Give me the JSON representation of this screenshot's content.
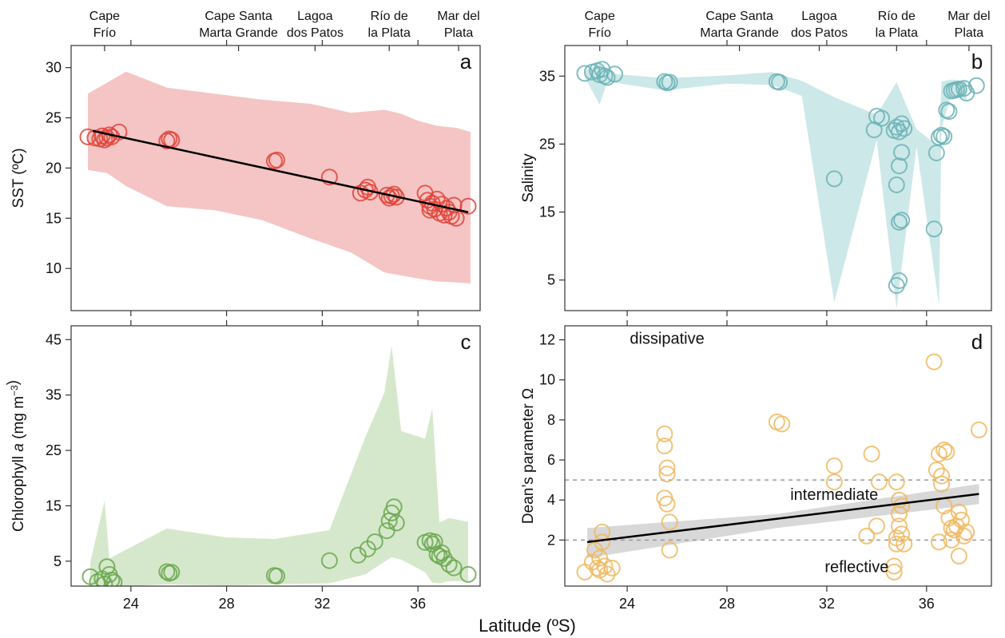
{
  "figure": {
    "xlabel": "Latitude (ºS)",
    "location_labels": [
      {
        "lat": 22.9,
        "lines": [
          "Cape",
          "Frío"
        ]
      },
      {
        "lat": 28.5,
        "lines": [
          "Cape Santa",
          "Marta Grande"
        ]
      },
      {
        "lat": 31.7,
        "lines": [
          "Lagoa",
          "dos Patos"
        ]
      },
      {
        "lat": 34.8,
        "lines": [
          "Río de",
          "la Plata"
        ]
      },
      {
        "lat": 37.7,
        "lines": [
          "Mar del",
          "Plata"
        ]
      }
    ]
  },
  "colors": {
    "sst": "#e0443a",
    "sst_band": "#f4c5c4",
    "salinity": "#6bb3b6",
    "salinity_band": "#cde8e8",
    "chlorophyll": "#6aa84f",
    "chlorophyll_band": "#d6e8cc",
    "dean": "#f0b860",
    "dean_band": "#d8d8d8",
    "trend": "#000000",
    "threshold": "#999999"
  },
  "chart_data": [
    {
      "type": "scatter",
      "panel": "a",
      "ylabel": "SST (ºC)",
      "xlim": [
        21.5,
        38.6
      ],
      "ylim": [
        5.8,
        32.2
      ],
      "yticks": [
        10,
        15,
        20,
        25,
        30
      ],
      "xticks": [
        24,
        28,
        32,
        36
      ],
      "points": [
        [
          22.2,
          23.1
        ],
        [
          22.5,
          23.0
        ],
        [
          22.7,
          22.9
        ],
        [
          22.8,
          23.2
        ],
        [
          22.9,
          22.8
        ],
        [
          23.0,
          23.0
        ],
        [
          23.1,
          23.3
        ],
        [
          23.2,
          23.1
        ],
        [
          23.5,
          23.6
        ],
        [
          25.5,
          22.7
        ],
        [
          25.6,
          22.9
        ],
        [
          25.7,
          22.8
        ],
        [
          30.0,
          20.7
        ],
        [
          30.1,
          20.8
        ],
        [
          32.3,
          19.1
        ],
        [
          33.6,
          17.5
        ],
        [
          33.8,
          17.8
        ],
        [
          33.9,
          18.1
        ],
        [
          34.0,
          17.6
        ],
        [
          34.7,
          17.3
        ],
        [
          34.8,
          17.0
        ],
        [
          34.9,
          17.2
        ],
        [
          35.0,
          17.4
        ],
        [
          35.1,
          17.1
        ],
        [
          36.3,
          17.5
        ],
        [
          36.4,
          16.8
        ],
        [
          36.5,
          16.2
        ],
        [
          36.5,
          15.8
        ],
        [
          36.6,
          16.5
        ],
        [
          36.7,
          15.9
        ],
        [
          36.8,
          16.9
        ],
        [
          36.9,
          15.5
        ],
        [
          37.0,
          16.4
        ],
        [
          37.1,
          15.3
        ],
        [
          37.2,
          16.0
        ],
        [
          37.3,
          15.6
        ],
        [
          37.4,
          15.2
        ],
        [
          37.5,
          16.3
        ],
        [
          37.6,
          15.0
        ],
        [
          38.1,
          16.2
        ]
      ],
      "trend": [
        [
          22.4,
          23.7
        ],
        [
          38.1,
          15.6
        ]
      ],
      "band": [
        [
          22.2,
          19.8,
          27.4
        ],
        [
          23.0,
          19.5,
          28.5
        ],
        [
          23.8,
          18.2,
          29.6
        ],
        [
          25.5,
          16.2,
          28.0
        ],
        [
          27.5,
          15.8,
          27.4
        ],
        [
          29.5,
          14.8,
          26.8
        ],
        [
          31.5,
          13.0,
          26.4
        ],
        [
          33.2,
          11.6,
          25.5
        ],
        [
          34.6,
          9.6,
          25.8
        ],
        [
          35.3,
          9.3,
          25.4
        ],
        [
          36.0,
          9.0,
          24.7
        ],
        [
          36.8,
          8.7,
          24.2
        ],
        [
          37.6,
          8.6,
          24.0
        ],
        [
          38.2,
          8.5,
          23.6
        ]
      ]
    },
    {
      "type": "scatter",
      "panel": "b",
      "ylabel": "Salinity",
      "xlim": [
        21.5,
        38.6
      ],
      "ylim": [
        0.5,
        39.5
      ],
      "yticks": [
        5,
        15,
        25,
        35
      ],
      "xticks": [
        24,
        28,
        32,
        36
      ],
      "points": [
        [
          22.3,
          35.4
        ],
        [
          22.6,
          35.6
        ],
        [
          22.8,
          35.8
        ],
        [
          22.9,
          35.2
        ],
        [
          23.0,
          36.0
        ],
        [
          23.1,
          35.0
        ],
        [
          23.2,
          34.8
        ],
        [
          23.5,
          35.3
        ],
        [
          25.5,
          34.2
        ],
        [
          25.6,
          34.0
        ],
        [
          25.7,
          34.1
        ],
        [
          30.0,
          34.2
        ],
        [
          30.1,
          34.1
        ],
        [
          32.3,
          19.9
        ],
        [
          33.9,
          27.1
        ],
        [
          34.0,
          29.1
        ],
        [
          34.2,
          28.8
        ],
        [
          34.7,
          27.0
        ],
        [
          34.8,
          27.5
        ],
        [
          34.9,
          26.8
        ],
        [
          35.0,
          28.0
        ],
        [
          35.1,
          27.3
        ],
        [
          34.8,
          19.0
        ],
        [
          34.9,
          21.8
        ],
        [
          35.0,
          23.8
        ],
        [
          34.9,
          13.5
        ],
        [
          35.0,
          13.8
        ],
        [
          34.8,
          4.2
        ],
        [
          34.9,
          4.9
        ],
        [
          36.3,
          12.5
        ],
        [
          36.4,
          23.7
        ],
        [
          36.5,
          26.0
        ],
        [
          36.6,
          26.3
        ],
        [
          36.7,
          26.1
        ],
        [
          36.8,
          30.0
        ],
        [
          36.9,
          29.8
        ],
        [
          37.0,
          32.8
        ],
        [
          37.1,
          32.9
        ],
        [
          37.2,
          33.0
        ],
        [
          37.3,
          33.1
        ],
        [
          37.5,
          33.2
        ],
        [
          37.6,
          32.5
        ],
        [
          38.0,
          33.6
        ]
      ],
      "band": [
        [
          22.3,
          34.8,
          35.8
        ],
        [
          22.9,
          30.8,
          36.8
        ],
        [
          23.2,
          34.2,
          35.4
        ],
        [
          25.5,
          32.9,
          34.7
        ],
        [
          28.0,
          33.9,
          35.1
        ],
        [
          29.8,
          33.7,
          35.6
        ],
        [
          31.0,
          32.1,
          34.3
        ],
        [
          32.3,
          1.7,
          31.9
        ],
        [
          34.0,
          25.6,
          29.3
        ],
        [
          34.8,
          0.8,
          34.1
        ],
        [
          35.6,
          24.6,
          27.2
        ],
        [
          36.5,
          1.3,
          24.6
        ],
        [
          36.6,
          27.3,
          34.2
        ],
        [
          37.0,
          32.4,
          34.5
        ],
        [
          37.6,
          31.5,
          34.2
        ]
      ]
    },
    {
      "type": "scatter",
      "panel": "c",
      "ylabel": "Chlorophyll a (mg m⁻³)",
      "xlim": [
        21.5,
        38.6
      ],
      "ylim": [
        0.5,
        47.5
      ],
      "yticks": [
        5,
        15,
        25,
        35,
        45
      ],
      "xticks": [
        24,
        28,
        32,
        36
      ],
      "points": [
        [
          22.3,
          2.2
        ],
        [
          22.6,
          1.3
        ],
        [
          22.8,
          1.8
        ],
        [
          22.9,
          0.9
        ],
        [
          23.0,
          4.0
        ],
        [
          23.1,
          2.6
        ],
        [
          23.2,
          1.6
        ],
        [
          23.3,
          1.2
        ],
        [
          25.5,
          3.1
        ],
        [
          25.6,
          2.8
        ],
        [
          25.7,
          3.0
        ],
        [
          30.0,
          2.4
        ],
        [
          30.1,
          2.3
        ],
        [
          32.3,
          5.1
        ],
        [
          33.5,
          6.1
        ],
        [
          33.9,
          7.2
        ],
        [
          34.2,
          8.5
        ],
        [
          34.7,
          10.5
        ],
        [
          34.8,
          12.3
        ],
        [
          34.9,
          13.7
        ],
        [
          35.0,
          14.8
        ],
        [
          35.1,
          11.9
        ],
        [
          36.3,
          8.4
        ],
        [
          36.5,
          8.7
        ],
        [
          36.6,
          8.1
        ],
        [
          36.7,
          8.5
        ],
        [
          36.8,
          6.2
        ],
        [
          36.9,
          5.9
        ],
        [
          37.0,
          6.5
        ],
        [
          37.1,
          5.5
        ],
        [
          37.3,
          4.4
        ],
        [
          37.5,
          3.8
        ],
        [
          38.1,
          2.6
        ]
      ],
      "band": [
        [
          22.3,
          0.3,
          4.8
        ],
        [
          22.9,
          0.3,
          15.9
        ],
        [
          23.1,
          0.3,
          5.5
        ],
        [
          25.5,
          0.8,
          10.9
        ],
        [
          28.0,
          0.6,
          9.3
        ],
        [
          30.0,
          0.8,
          9.0
        ],
        [
          32.3,
          1.0,
          10.6
        ],
        [
          33.8,
          2.6,
          27.4
        ],
        [
          34.6,
          4.9,
          35.4
        ],
        [
          34.9,
          5.7,
          43.9
        ],
        [
          35.3,
          5.3,
          28.5
        ],
        [
          36.3,
          3.0,
          27.1
        ],
        [
          36.6,
          1.1,
          32.6
        ],
        [
          36.9,
          1.0,
          12.0
        ],
        [
          37.3,
          1.4,
          12.8
        ],
        [
          38.1,
          1.4,
          12.1
        ]
      ]
    },
    {
      "type": "scatter",
      "panel": "d",
      "ylabel": "Dean’s parameter Ω",
      "xlim": [
        21.5,
        38.6
      ],
      "ylim": [
        -0.3,
        12.7
      ],
      "yticks": [
        2,
        4,
        6,
        8,
        10,
        12
      ],
      "xticks": [
        24,
        28,
        32,
        36
      ],
      "thresholds": [
        2,
        5
      ],
      "regions": [
        "dissipative",
        "intermediate",
        "reflective"
      ],
      "points": [
        [
          22.3,
          0.4
        ],
        [
          22.6,
          0.9
        ],
        [
          22.7,
          1.5
        ],
        [
          22.8,
          0.6
        ],
        [
          22.9,
          0.5
        ],
        [
          22.9,
          1.1
        ],
        [
          23.0,
          1.9
        ],
        [
          23.0,
          2.4
        ],
        [
          23.1,
          0.7
        ],
        [
          23.2,
          0.3
        ],
        [
          23.4,
          0.6
        ],
        [
          25.5,
          7.3
        ],
        [
          25.5,
          6.7
        ],
        [
          25.6,
          5.6
        ],
        [
          25.6,
          5.3
        ],
        [
          25.5,
          4.1
        ],
        [
          25.6,
          3.8
        ],
        [
          25.7,
          2.9
        ],
        [
          25.7,
          1.5
        ],
        [
          30.0,
          7.9
        ],
        [
          30.2,
          7.8
        ],
        [
          32.3,
          5.7
        ],
        [
          32.3,
          4.9
        ],
        [
          33.6,
          2.2
        ],
        [
          33.8,
          6.3
        ],
        [
          34.0,
          2.7
        ],
        [
          34.1,
          4.9
        ],
        [
          34.7,
          0.7
        ],
        [
          34.7,
          0.4
        ],
        [
          34.8,
          1.8
        ],
        [
          34.8,
          2.1
        ],
        [
          34.8,
          4.9
        ],
        [
          34.9,
          2.7
        ],
        [
          34.9,
          3.3
        ],
        [
          34.9,
          4.0
        ],
        [
          35.0,
          3.7
        ],
        [
          35.0,
          2.3
        ],
        [
          35.1,
          1.8
        ],
        [
          36.3,
          10.9
        ],
        [
          36.4,
          5.5
        ],
        [
          36.5,
          6.3
        ],
        [
          36.5,
          1.9
        ],
        [
          36.6,
          5.2
        ],
        [
          36.6,
          4.8
        ],
        [
          36.7,
          6.5
        ],
        [
          36.7,
          3.7
        ],
        [
          36.8,
          6.4
        ],
        [
          36.9,
          3.1
        ],
        [
          37.0,
          2.6
        ],
        [
          37.0,
          2.0
        ],
        [
          37.1,
          2.5
        ],
        [
          37.2,
          2.7
        ],
        [
          37.3,
          3.4
        ],
        [
          37.4,
          3.0
        ],
        [
          37.5,
          2.2
        ],
        [
          37.3,
          1.2
        ],
        [
          37.6,
          2.4
        ],
        [
          38.1,
          7.5
        ]
      ],
      "trend": [
        [
          22.4,
          1.9
        ],
        [
          38.1,
          4.3
        ]
      ],
      "trend_ci": [
        [
          22.4,
          1.1,
          2.6
        ],
        [
          30.0,
          2.6,
          3.3
        ],
        [
          38.1,
          3.8,
          4.8
        ]
      ]
    }
  ]
}
